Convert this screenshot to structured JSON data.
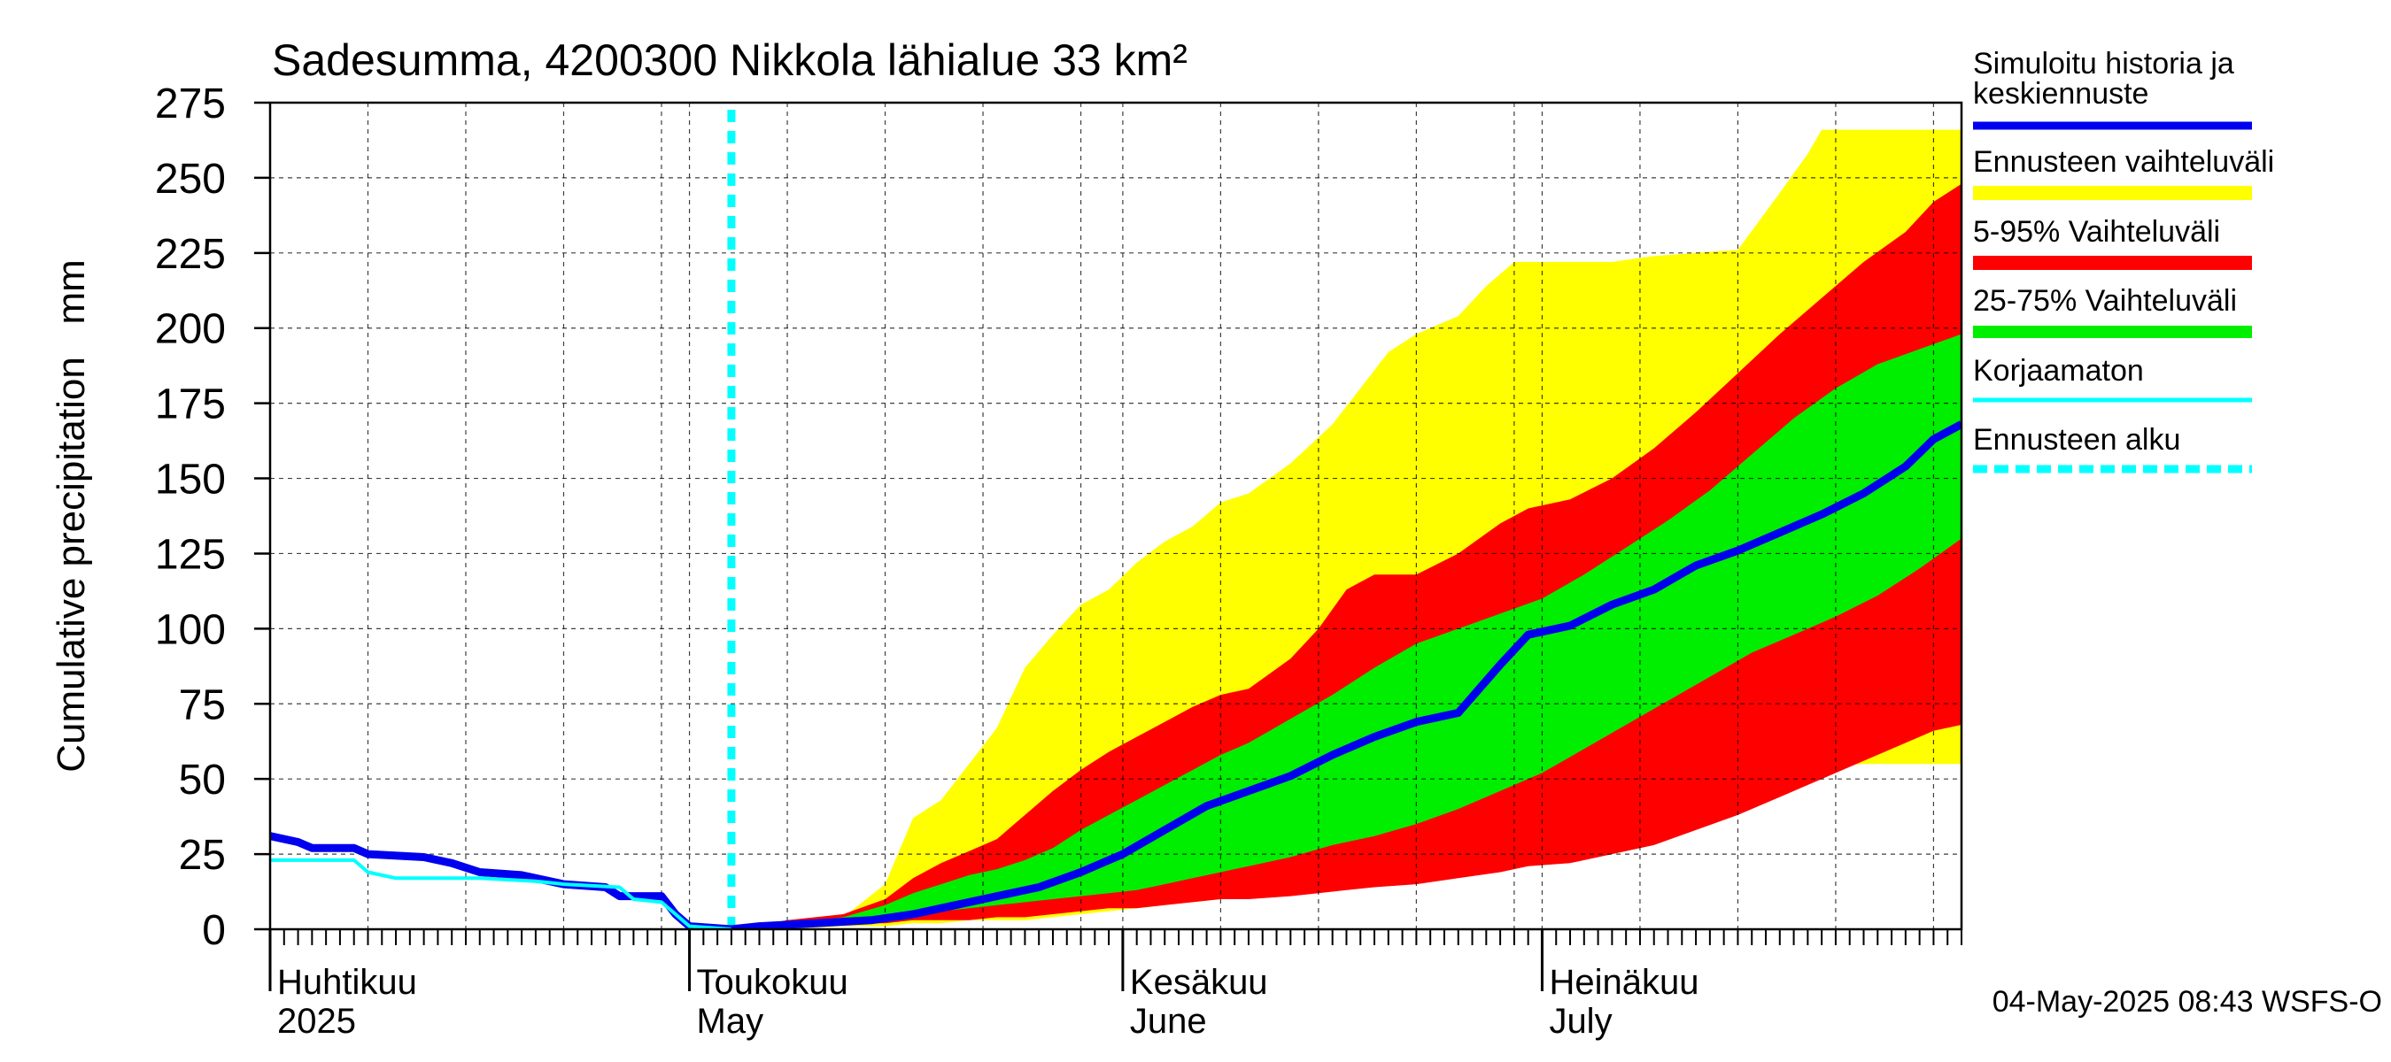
{
  "chart_data": {
    "type": "area",
    "title": "Sadesumma, 4200300 Nikkola lähialue 33 km²",
    "ylabel": "Cumulative precipitation   mm",
    "ylim": [
      0,
      275
    ],
    "yticks": [
      0,
      25,
      50,
      75,
      100,
      125,
      150,
      175,
      200,
      225,
      250,
      275
    ],
    "xlim": [
      "2025-04-01",
      "2025-07-31"
    ],
    "month_labels": [
      {
        "date": "2025-04-01",
        "fi": "Huhtikuu",
        "en": "2025"
      },
      {
        "date": "2025-05-01",
        "fi": "Toukokuu",
        "en": "May"
      },
      {
        "date": "2025-06-01",
        "fi": "Kesäkuu",
        "en": "June"
      },
      {
        "date": "2025-07-01",
        "fi": "Heinäkuu",
        "en": "July"
      }
    ],
    "forecast_start": "2025-05-04",
    "grid": true,
    "legend_placement": "right",
    "legend": [
      {
        "label": "Simuloitu historia ja keskiennuste",
        "color": "#0000ee"
      },
      {
        "label": "Ennusteen vaihteluväli",
        "color": "#ffff00"
      },
      {
        "label": "5-95% Vaihteluväli",
        "color": "#ff0000"
      },
      {
        "label": "25-75% Vaihteluväli",
        "color": "#00ee00"
      },
      {
        "label": "Korjaamaton",
        "color": "#00ffff"
      },
      {
        "label": "Ennusteen alku",
        "color": "#00ffff"
      }
    ],
    "colors": {
      "range_full": "#ffff00",
      "range_5_95": "#ff0000",
      "range_25_75": "#00ee00",
      "median": "#0000ee",
      "uncorrected": "#00ffff",
      "forecast_start": "#00ffff"
    },
    "series": [
      {
        "name": "Simuloitu historia ja keskiennuste",
        "key": "history",
        "points": [
          [
            "2025-04-01",
            31
          ],
          [
            "2025-04-03",
            29
          ],
          [
            "2025-04-04",
            27
          ],
          [
            "2025-04-07",
            27
          ],
          [
            "2025-04-08",
            25
          ],
          [
            "2025-04-12",
            24
          ],
          [
            "2025-04-14",
            22
          ],
          [
            "2025-04-16",
            19
          ],
          [
            "2025-04-19",
            18
          ],
          [
            "2025-04-20",
            17
          ],
          [
            "2025-04-22",
            15
          ],
          [
            "2025-04-25",
            14
          ],
          [
            "2025-04-26",
            11
          ],
          [
            "2025-04-29",
            11
          ],
          [
            "2025-04-30",
            5
          ],
          [
            "2025-05-01",
            1
          ],
          [
            "2025-05-04",
            0
          ]
        ]
      },
      {
        "name": "Korjaamaton",
        "key": "uncorrected",
        "points": [
          [
            "2025-04-01",
            23
          ],
          [
            "2025-04-07",
            23
          ],
          [
            "2025-04-08",
            19
          ],
          [
            "2025-04-10",
            17
          ],
          [
            "2025-04-16",
            17
          ],
          [
            "2025-04-20",
            16
          ],
          [
            "2025-04-22",
            15
          ],
          [
            "2025-04-26",
            14
          ],
          [
            "2025-04-27",
            10
          ],
          [
            "2025-04-29",
            9
          ],
          [
            "2025-05-01",
            1
          ],
          [
            "2025-05-04",
            0
          ]
        ]
      },
      {
        "name": "Simuloitu historia ja keskiennuste",
        "key": "median",
        "points": [
          [
            "2025-05-04",
            0
          ],
          [
            "2025-05-06",
            1
          ],
          [
            "2025-05-10",
            2
          ],
          [
            "2025-05-14",
            3
          ],
          [
            "2025-05-17",
            5
          ],
          [
            "2025-05-20",
            8
          ],
          [
            "2025-05-23",
            11
          ],
          [
            "2025-05-26",
            14
          ],
          [
            "2025-05-29",
            19
          ],
          [
            "2025-06-01",
            25
          ],
          [
            "2025-06-04",
            33
          ],
          [
            "2025-06-07",
            41
          ],
          [
            "2025-06-10",
            46
          ],
          [
            "2025-06-13",
            51
          ],
          [
            "2025-06-16",
            58
          ],
          [
            "2025-06-19",
            64
          ],
          [
            "2025-06-22",
            69
          ],
          [
            "2025-06-25",
            72
          ],
          [
            "2025-06-28",
            88
          ],
          [
            "2025-06-30",
            98
          ],
          [
            "2025-07-03",
            101
          ],
          [
            "2025-07-06",
            108
          ],
          [
            "2025-07-09",
            113
          ],
          [
            "2025-07-12",
            121
          ],
          [
            "2025-07-15",
            126
          ],
          [
            "2025-07-18",
            132
          ],
          [
            "2025-07-21",
            138
          ],
          [
            "2025-07-24",
            145
          ],
          [
            "2025-07-27",
            154
          ],
          [
            "2025-07-29",
            163
          ],
          [
            "2025-07-31",
            168
          ]
        ]
      }
    ],
    "bands": [
      {
        "name": "Ennusteen vaihteluväli",
        "key": "range_full",
        "points": [
          [
            "2025-05-04",
            0,
            0
          ],
          [
            "2025-05-08",
            0,
            3
          ],
          [
            "2025-05-12",
            1,
            4
          ],
          [
            "2025-05-15",
            1,
            15
          ],
          [
            "2025-05-17",
            2,
            37
          ],
          [
            "2025-05-19",
            2,
            43
          ],
          [
            "2025-05-21",
            3,
            55
          ],
          [
            "2025-05-23",
            3,
            67
          ],
          [
            "2025-05-25",
            3,
            87
          ],
          [
            "2025-05-27",
            4,
            98
          ],
          [
            "2025-05-29",
            5,
            108
          ],
          [
            "2025-05-31",
            6,
            113
          ],
          [
            "2025-06-02",
            7,
            122
          ],
          [
            "2025-06-04",
            8,
            129
          ],
          [
            "2025-06-06",
            9,
            134
          ],
          [
            "2025-06-08",
            10,
            142
          ],
          [
            "2025-06-10",
            11,
            145
          ],
          [
            "2025-06-13",
            12,
            155
          ],
          [
            "2025-06-16",
            13,
            168
          ],
          [
            "2025-06-18",
            14,
            180
          ],
          [
            "2025-06-20",
            15,
            192
          ],
          [
            "2025-06-22",
            16,
            198
          ],
          [
            "2025-06-25",
            18,
            204
          ],
          [
            "2025-06-27",
            22,
            214
          ],
          [
            "2025-06-29",
            26,
            222
          ],
          [
            "2025-07-03",
            28,
            222
          ],
          [
            "2025-07-06",
            30,
            222
          ],
          [
            "2025-07-09",
            32,
            224
          ],
          [
            "2025-07-12",
            35,
            225
          ],
          [
            "2025-07-15",
            39,
            226
          ],
          [
            "2025-07-18",
            45,
            245
          ],
          [
            "2025-07-20",
            50,
            258
          ],
          [
            "2025-07-21",
            54,
            266
          ],
          [
            "2025-07-24",
            55,
            266
          ],
          [
            "2025-07-31",
            55,
            266
          ]
        ]
      },
      {
        "name": "5-95% Vaihteluväli",
        "key": "range_5_95",
        "points": [
          [
            "2025-05-04",
            0,
            0
          ],
          [
            "2025-05-08",
            1,
            3
          ],
          [
            "2025-05-12",
            2,
            5
          ],
          [
            "2025-05-15",
            2,
            10
          ],
          [
            "2025-05-17",
            3,
            17
          ],
          [
            "2025-05-19",
            3,
            22
          ],
          [
            "2025-05-21",
            3,
            26
          ],
          [
            "2025-05-23",
            4,
            30
          ],
          [
            "2025-05-25",
            4,
            38
          ],
          [
            "2025-05-27",
            5,
            46
          ],
          [
            "2025-05-29",
            6,
            53
          ],
          [
            "2025-05-31",
            7,
            59
          ],
          [
            "2025-06-02",
            7,
            64
          ],
          [
            "2025-06-04",
            8,
            69
          ],
          [
            "2025-06-06",
            9,
            74
          ],
          [
            "2025-06-08",
            10,
            78
          ],
          [
            "2025-06-10",
            10,
            80
          ],
          [
            "2025-06-13",
            11,
            90
          ],
          [
            "2025-06-15",
            12,
            100
          ],
          [
            "2025-06-17",
            13,
            113
          ],
          [
            "2025-06-19",
            14,
            118
          ],
          [
            "2025-06-22",
            15,
            118
          ],
          [
            "2025-06-25",
            17,
            125
          ],
          [
            "2025-06-28",
            19,
            135
          ],
          [
            "2025-06-30",
            21,
            140
          ],
          [
            "2025-07-03",
            22,
            143
          ],
          [
            "2025-07-06",
            25,
            150
          ],
          [
            "2025-07-09",
            28,
            160
          ],
          [
            "2025-07-12",
            33,
            172
          ],
          [
            "2025-07-15",
            38,
            185
          ],
          [
            "2025-07-18",
            44,
            198
          ],
          [
            "2025-07-21",
            50,
            210
          ],
          [
            "2025-07-24",
            56,
            222
          ],
          [
            "2025-07-27",
            62,
            232
          ],
          [
            "2025-07-29",
            66,
            242
          ],
          [
            "2025-07-31",
            68,
            248
          ]
        ]
      },
      {
        "name": "25-75% Vaihteluväli",
        "key": "range_25_75",
        "points": [
          [
            "2025-05-04",
            0,
            0
          ],
          [
            "2025-05-08",
            2,
            2
          ],
          [
            "2025-05-12",
            3,
            4
          ],
          [
            "2025-05-15",
            4,
            8
          ],
          [
            "2025-05-17",
            5,
            12
          ],
          [
            "2025-05-19",
            6,
            15
          ],
          [
            "2025-05-21",
            7,
            18
          ],
          [
            "2025-05-23",
            8,
            20
          ],
          [
            "2025-05-25",
            9,
            23
          ],
          [
            "2025-05-27",
            10,
            27
          ],
          [
            "2025-05-29",
            11,
            33
          ],
          [
            "2025-05-31",
            12,
            38
          ],
          [
            "2025-06-02",
            13,
            43
          ],
          [
            "2025-06-04",
            15,
            48
          ],
          [
            "2025-06-06",
            17,
            53
          ],
          [
            "2025-06-08",
            19,
            58
          ],
          [
            "2025-06-10",
            21,
            62
          ],
          [
            "2025-06-13",
            24,
            70
          ],
          [
            "2025-06-16",
            28,
            78
          ],
          [
            "2025-06-19",
            31,
            87
          ],
          [
            "2025-06-22",
            35,
            95
          ],
          [
            "2025-06-25",
            40,
            100
          ],
          [
            "2025-06-28",
            46,
            105
          ],
          [
            "2025-07-01",
            52,
            110
          ],
          [
            "2025-07-04",
            60,
            118
          ],
          [
            "2025-07-07",
            68,
            127
          ],
          [
            "2025-07-10",
            76,
            136
          ],
          [
            "2025-07-13",
            84,
            146
          ],
          [
            "2025-07-16",
            92,
            158
          ],
          [
            "2025-07-19",
            98,
            170
          ],
          [
            "2025-07-22",
            104,
            180
          ],
          [
            "2025-07-25",
            111,
            188
          ],
          [
            "2025-07-28",
            120,
            193
          ],
          [
            "2025-07-31",
            130,
            198
          ]
        ]
      }
    ]
  },
  "timestamp": "04-May-2025 08:43 WSFS-O"
}
